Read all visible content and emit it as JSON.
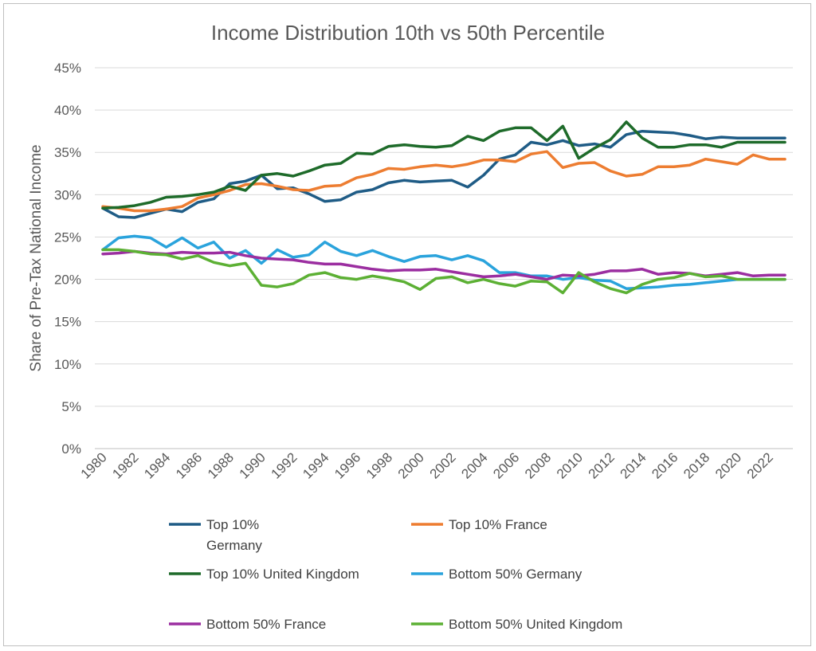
{
  "chart_data": {
    "type": "line",
    "title": "Income Distribution 10th vs 50th Percentile",
    "xlabel": "",
    "ylabel": "Share of Pre-Tax National Income",
    "ylim": [
      0,
      45
    ],
    "yticks": [
      "0%",
      "5%",
      "10%",
      "15%",
      "20%",
      "25%",
      "30%",
      "35%",
      "40%",
      "45%"
    ],
    "xticks": [
      "1980",
      "1982",
      "1984",
      "1986",
      "1988",
      "1990",
      "1992",
      "1994",
      "1996",
      "1998",
      "2000",
      "2002",
      "2004",
      "2006",
      "2008",
      "2010",
      "2012",
      "2014",
      "2016",
      "2018",
      "2020",
      "2022"
    ],
    "grid": true,
    "legend_position": "bottom",
    "x": [
      1980,
      1981,
      1982,
      1983,
      1984,
      1985,
      1986,
      1987,
      1988,
      1989,
      1990,
      1991,
      1992,
      1993,
      1994,
      1995,
      1996,
      1997,
      1998,
      1999,
      2000,
      2001,
      2002,
      2003,
      2004,
      2005,
      2006,
      2007,
      2008,
      2009,
      2010,
      2011,
      2012,
      2013,
      2014,
      2015,
      2016,
      2017,
      2018,
      2019,
      2020,
      2021,
      2022,
      2023
    ],
    "series": [
      {
        "name": "Top 10% Germany",
        "legend_lines": [
          "Top 10%",
          "Germany"
        ],
        "color": "#1f5c86",
        "values": [
          28.4,
          27.4,
          27.3,
          27.8,
          28.3,
          28.0,
          29.1,
          29.5,
          31.3,
          31.6,
          32.3,
          30.7,
          30.8,
          30.1,
          29.2,
          29.4,
          30.3,
          30.6,
          31.4,
          31.7,
          31.5,
          31.6,
          31.7,
          30.9,
          32.3,
          34.2,
          34.7,
          36.2,
          35.9,
          36.4,
          35.8,
          36.0,
          35.6,
          37.1,
          37.5,
          37.4,
          37.3,
          37.0,
          36.6,
          36.8,
          36.7,
          36.7,
          36.7,
          36.7
        ]
      },
      {
        "name": "Top 10% France",
        "color": "#ed7d31",
        "values": [
          28.6,
          28.4,
          28.1,
          28.1,
          28.3,
          28.6,
          29.6,
          30.0,
          30.5,
          31.2,
          31.3,
          31.0,
          30.6,
          30.5,
          31.0,
          31.1,
          32.0,
          32.4,
          33.1,
          33.0,
          33.3,
          33.5,
          33.3,
          33.6,
          34.1,
          34.1,
          33.9,
          34.8,
          35.1,
          33.2,
          33.7,
          33.8,
          32.8,
          32.2,
          32.4,
          33.3,
          33.3,
          33.5,
          34.2,
          33.9,
          33.6,
          34.7,
          34.2,
          34.2
        ]
      },
      {
        "name": "Top 10% United Kingdom",
        "color": "#1e6b2a",
        "values": [
          28.4,
          28.5,
          28.7,
          29.1,
          29.7,
          29.8,
          30.0,
          30.3,
          31.0,
          30.5,
          32.3,
          32.5,
          32.2,
          32.8,
          33.5,
          33.7,
          34.9,
          34.8,
          35.7,
          35.9,
          35.7,
          35.6,
          35.8,
          36.9,
          36.4,
          37.5,
          37.9,
          37.9,
          36.4,
          38.1,
          34.3,
          35.5,
          36.5,
          38.6,
          36.7,
          35.6,
          35.6,
          35.9,
          35.9,
          35.6,
          36.2,
          36.2,
          36.2,
          36.2
        ]
      },
      {
        "name": "Bottom 50% Germany",
        "color": "#2aa3dc",
        "values": [
          23.5,
          24.9,
          25.1,
          24.9,
          23.8,
          24.9,
          23.7,
          24.4,
          22.5,
          23.4,
          21.9,
          23.5,
          22.6,
          22.9,
          24.4,
          23.3,
          22.8,
          23.4,
          22.7,
          22.1,
          22.7,
          22.8,
          22.3,
          22.8,
          22.2,
          20.8,
          20.8,
          20.4,
          20.4,
          20.0,
          20.2,
          19.9,
          19.8,
          18.9,
          19.0,
          19.1,
          19.3,
          19.4,
          19.6,
          19.8,
          20.0,
          20.0,
          20.0,
          20.0
        ]
      },
      {
        "name": "Bottom 50% France",
        "color": "#9b2ea0",
        "values": [
          23.0,
          23.1,
          23.3,
          23.1,
          23.0,
          23.2,
          23.1,
          23.1,
          23.2,
          22.8,
          22.5,
          22.4,
          22.3,
          22.0,
          21.8,
          21.8,
          21.5,
          21.2,
          21.0,
          21.1,
          21.1,
          21.2,
          20.9,
          20.6,
          20.3,
          20.4,
          20.6,
          20.3,
          20.0,
          20.5,
          20.4,
          20.6,
          21.0,
          21.0,
          21.2,
          20.6,
          20.8,
          20.7,
          20.4,
          20.6,
          20.8,
          20.4,
          20.5,
          20.5
        ]
      },
      {
        "name": "Bottom 50% United Kingdom",
        "color": "#5cb034",
        "values": [
          23.5,
          23.5,
          23.3,
          23.0,
          22.9,
          22.4,
          22.8,
          22.0,
          21.6,
          21.9,
          19.3,
          19.1,
          19.5,
          20.5,
          20.8,
          20.2,
          20.0,
          20.4,
          20.1,
          19.7,
          18.8,
          20.1,
          20.3,
          19.6,
          20.0,
          19.5,
          19.2,
          19.8,
          19.7,
          18.4,
          20.8,
          19.7,
          18.9,
          18.4,
          19.4,
          20.0,
          20.2,
          20.7,
          20.3,
          20.4,
          20.0,
          20.0,
          20.0,
          20.0
        ]
      }
    ]
  }
}
